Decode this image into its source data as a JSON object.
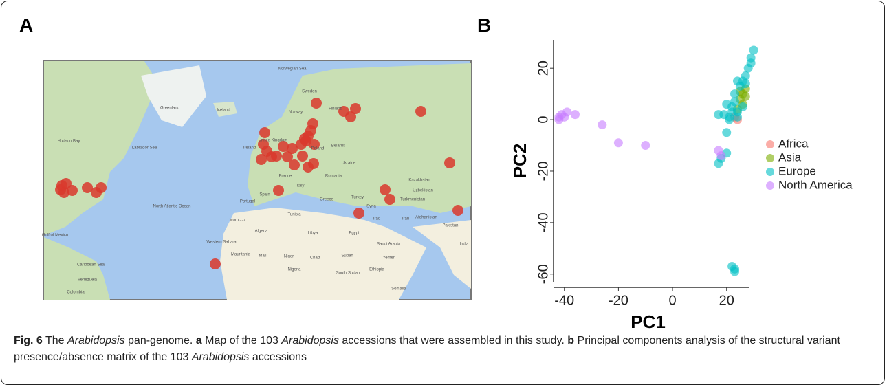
{
  "panels": [
    "A",
    "B"
  ],
  "map": {
    "labels": [
      "Greenland",
      "Iceland",
      "Norwegian Sea",
      "Hudson Bay",
      "Labrador Sea",
      "Sweden",
      "Norway",
      "Finland",
      "Ireland",
      "United Kingdom",
      "Poland",
      "Belarus",
      "Ukraine",
      "France",
      "Romania",
      "Italy",
      "Spain",
      "Portugal",
      "Greece",
      "Turkey",
      "Kazakhstan",
      "Uzbekistan",
      "Turkmenistan",
      "Afghanistan",
      "Pakistan",
      "Iran",
      "Iraq",
      "Syria",
      "North Atlantic Ocean",
      "Morocco",
      "Tunisia",
      "Algeria",
      "Libya",
      "Egypt",
      "Saudi Arabia",
      "Western Sahara",
      "Mauritania",
      "Mali",
      "Niger",
      "Chad",
      "Sudan",
      "Yemen",
      "Nigeria",
      "Ethiopia",
      "South Sudan",
      "Somalia",
      "India",
      "Venezuela",
      "Colombia",
      "Gulf of Mexico",
      "Caribbean Sea"
    ]
  },
  "chart_data": {
    "type": "scatter",
    "xlabel": "PC1",
    "ylabel": "PC2",
    "xlim": [
      -44,
      31
    ],
    "ylim": [
      -63,
      31
    ],
    "xticks": [
      -40,
      -20,
      0,
      20
    ],
    "yticks": [
      -60,
      -40,
      -20,
      0,
      20
    ],
    "legend": "right",
    "series": [
      {
        "name": "Africa",
        "color": "#f8766d",
        "x": [
          23,
          24
        ],
        "values": [
          1,
          0
        ]
      },
      {
        "name": "Asia",
        "color": "#7cae00",
        "x": [
          25,
          26,
          27,
          26,
          24,
          27,
          25
        ],
        "values": [
          8,
          10,
          12,
          6,
          4,
          9,
          11
        ]
      },
      {
        "name": "Europe",
        "color": "#00bfc4",
        "x": [
          17,
          19,
          21,
          22,
          20,
          22,
          24,
          23,
          25,
          26,
          27,
          28,
          29,
          30,
          29,
          21,
          18,
          17,
          20,
          22,
          23,
          23,
          24,
          26,
          23,
          24,
          20,
          27
        ],
        "values": [
          2,
          2,
          1,
          3,
          -5,
          5,
          3,
          7,
          13,
          15,
          17,
          20,
          24,
          27,
          22,
          0,
          -15,
          -17,
          -13,
          -57,
          -59,
          -58,
          1,
          5,
          10,
          15,
          6,
          14
        ]
      },
      {
        "name": "North America",
        "color": "#c77cff",
        "x": [
          -42,
          -41,
          -42,
          -40,
          -39,
          -36,
          -26,
          -20,
          -10,
          17,
          18
        ],
        "values": [
          1,
          2,
          0,
          1,
          3,
          2,
          -2,
          -9,
          -10,
          -12,
          -14
        ]
      }
    ]
  },
  "caption": {
    "label": "Fig. 6",
    "parts": [
      "The",
      "Arabidopsis",
      "pan-genome.",
      "a",
      "Map of the 103",
      "Arabidopsis",
      "accessions that were assembled in this study.",
      "b",
      "Principal components analysis of the structural variant presence/absence matrix of the 103",
      "Arabidopsis",
      "accessions"
    ]
  }
}
